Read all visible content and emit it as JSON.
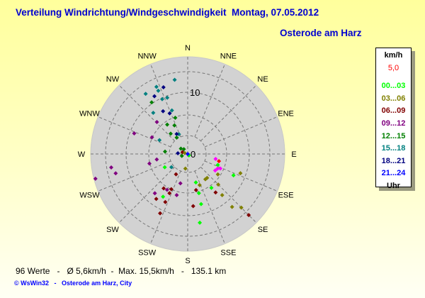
{
  "header": {
    "title": "Verteilung Windrichtung/Windgeschwindigkeit  Montag, 07.05.2012",
    "subtitle": "Osterode am Harz"
  },
  "legend": {
    "unit": "km/h",
    "current": "5,0",
    "current_color": "#ff0000",
    "classes": [
      {
        "label": "00...03",
        "color": "#00ff00"
      },
      {
        "label": "03...06",
        "color": "#808000"
      },
      {
        "label": "06...09",
        "color": "#800000"
      },
      {
        "label": "09...12",
        "color": "#800080"
      },
      {
        "label": "12...15",
        "color": "#008000"
      },
      {
        "label": "15...18",
        "color": "#008080"
      },
      {
        "label": "18...21",
        "color": "#000080"
      },
      {
        "label": "21...24",
        "color": "#0000ff"
      }
    ],
    "footer": "Uhr"
  },
  "footer": {
    "stats": "96 Werte   -   Ø 5,6km/h  -  Max. 15,5km/h   -   135.1 km",
    "credit": "© WsWin32   -   Osterode am Harz, City"
  },
  "chart_data": {
    "type": "scatter",
    "coordinate_system": "polar",
    "directions": [
      "N",
      "NNE",
      "NE",
      "ENE",
      "E",
      "ESE",
      "SE",
      "SSE",
      "S",
      "SSW",
      "SW",
      "WSW",
      "W",
      "WNW",
      "NW",
      "NNW"
    ],
    "radial_tick_labels": [
      "0",
      "10"
    ],
    "radial_unit": "km/h",
    "radial_max": 15.7,
    "grid": true,
    "points": [
      {
        "dir": 350,
        "speed": 12.2,
        "color": "#008080"
      },
      {
        "dir": 335,
        "speed": 12.0,
        "color": "#008080"
      },
      {
        "dir": 335,
        "speed": 11.3,
        "color": "#008080"
      },
      {
        "dir": 325,
        "speed": 11.9,
        "color": "#008080"
      },
      {
        "dir": 335,
        "speed": 9.8,
        "color": "#008080"
      },
      {
        "dir": 340,
        "speed": 9.7,
        "color": "#008080"
      },
      {
        "dir": 320,
        "speed": 8.7,
        "color": "#008080"
      },
      {
        "dir": 340,
        "speed": 7.5,
        "color": "#008080"
      },
      {
        "dir": 336,
        "speed": 3.5,
        "color": "#008080"
      },
      {
        "dir": 296,
        "speed": 5.1,
        "color": "#008080"
      },
      {
        "dir": 231,
        "speed": 3.4,
        "color": "#008080"
      },
      {
        "dir": 340,
        "speed": 11.5,
        "color": "#000080"
      },
      {
        "dir": 330,
        "speed": 10.8,
        "color": "#000080"
      },
      {
        "dir": 330,
        "speed": 8.0,
        "color": "#000080"
      },
      {
        "dir": 336,
        "speed": 7.2,
        "color": "#000080"
      },
      {
        "dir": 331,
        "speed": 3.7,
        "color": "#000080"
      },
      {
        "dir": 274,
        "speed": 1.6,
        "color": "#000080"
      },
      {
        "dir": 325,
        "speed": 10.2,
        "color": "#008000"
      },
      {
        "dir": 341,
        "speed": 6.2,
        "color": "#008000"
      },
      {
        "dir": 325,
        "speed": 5.8,
        "color": "#008000"
      },
      {
        "dir": 335,
        "speed": 5.1,
        "color": "#008000"
      },
      {
        "dir": 320,
        "speed": 4.3,
        "color": "#008000"
      },
      {
        "dir": 326,
        "speed": 3.2,
        "color": "#008000"
      },
      {
        "dir": 276,
        "speed": 3.7,
        "color": "#008000"
      },
      {
        "dir": 308,
        "speed": 1.4,
        "color": "#008000"
      },
      {
        "dir": 321,
        "speed": 1.0,
        "color": "#008000"
      },
      {
        "dir": 252,
        "speed": 1.0,
        "color": "#008000"
      },
      {
        "dir": 316,
        "speed": 7.2,
        "color": "#800080"
      },
      {
        "dir": 291,
        "speed": 9.3,
        "color": "#800080"
      },
      {
        "dir": 295,
        "speed": 6.4,
        "color": "#800080"
      },
      {
        "dir": 260,
        "speed": 5.1,
        "color": "#800080"
      },
      {
        "dir": 256,
        "speed": 6.4,
        "color": "#800080"
      },
      {
        "dir": 260,
        "speed": 12.6,
        "color": "#800080"
      },
      {
        "dir": 255,
        "speed": 12.1,
        "color": "#800080"
      },
      {
        "dir": 255,
        "speed": 15.5,
        "color": "#800080"
      },
      {
        "dir": 194,
        "speed": 4.9,
        "color": "#800080"
      },
      {
        "dir": 210,
        "speed": 6.7,
        "color": "#800080"
      },
      {
        "dir": 220,
        "speed": 8.3,
        "color": "#800080"
      },
      {
        "dir": 195,
        "speed": 6.9,
        "color": "#800080"
      },
      {
        "dir": 289,
        "speed": 0.9,
        "color": "#800000"
      },
      {
        "dir": 210,
        "speed": 3.8,
        "color": "#800000"
      },
      {
        "dir": 215,
        "speed": 6.8,
        "color": "#800000"
      },
      {
        "dir": 205,
        "speed": 6.3,
        "color": "#800000"
      },
      {
        "dir": 205,
        "speed": 7.0,
        "color": "#800000"
      },
      {
        "dir": 215,
        "speed": 8.9,
        "color": "#800000"
      },
      {
        "dir": 205,
        "speed": 8.6,
        "color": "#800000"
      },
      {
        "dir": 205,
        "speed": 10.6,
        "color": "#800000"
      },
      {
        "dir": 167,
        "speed": 6.0,
        "color": "#800000"
      },
      {
        "dir": 174,
        "speed": 8.5,
        "color": "#800000"
      },
      {
        "dir": 144,
        "speed": 7.7,
        "color": "#800000"
      },
      {
        "dir": 135,
        "speed": 14.0,
        "color": "#800000"
      },
      {
        "dir": 189,
        "speed": 2.4,
        "color": "#808000"
      },
      {
        "dir": 287,
        "speed": 0.5,
        "color": "#808000"
      },
      {
        "dir": 145,
        "speed": 5.0,
        "color": "#808000"
      },
      {
        "dir": 141,
        "speed": 5.0,
        "color": "#808000"
      },
      {
        "dir": 159,
        "speed": 5.4,
        "color": "#808000"
      },
      {
        "dir": 124,
        "speed": 5.9,
        "color": "#808000"
      },
      {
        "dir": 135,
        "speed": 7.0,
        "color": "#808000"
      },
      {
        "dir": 140,
        "speed": 8.7,
        "color": "#808000"
      },
      {
        "dir": 110,
        "speed": 9.1,
        "color": "#808000"
      },
      {
        "dir": 140,
        "speed": 11.2,
        "color": "#808000"
      },
      {
        "dir": 135,
        "speed": 12.3,
        "color": "#808000"
      },
      {
        "dir": 140,
        "speed": 0.3,
        "color": "#00ff00"
      },
      {
        "dir": 240,
        "speed": 4.3,
        "color": "#00ff00"
      },
      {
        "dir": 164,
        "speed": 4.8,
        "color": "#00ff00"
      },
      {
        "dir": 164,
        "speed": 6.6,
        "color": "#00ff00"
      },
      {
        "dir": 165,
        "speed": 8.4,
        "color": "#00ff00"
      },
      {
        "dir": 170,
        "speed": 11.3,
        "color": "#00ff00"
      },
      {
        "dir": 145,
        "speed": 6.7,
        "color": "#00ff00"
      },
      {
        "dir": 110,
        "speed": 5.2,
        "color": "#00ff00"
      },
      {
        "dir": 115,
        "speed": 8.2,
        "color": "#00ff00"
      },
      {
        "dir": 210,
        "speed": 8.0,
        "color": "#00ff00"
      },
      {
        "dir": 100,
        "speed": 4.6,
        "color": "#ff00ff"
      },
      {
        "dir": 116,
        "speed": 5.4,
        "color": "#ff00ff"
      },
      {
        "dir": 114,
        "speed": 5.8,
        "color": "#ff00ff"
      },
      {
        "dir": 121,
        "speed": 5.2,
        "color": "#ff00ff"
      },
      {
        "dir": 103,
        "speed": 5.2,
        "color": "#ff0000"
      },
      {
        "dir": 0,
        "speed": 0.0,
        "color": "#0000ff"
      }
    ]
  }
}
